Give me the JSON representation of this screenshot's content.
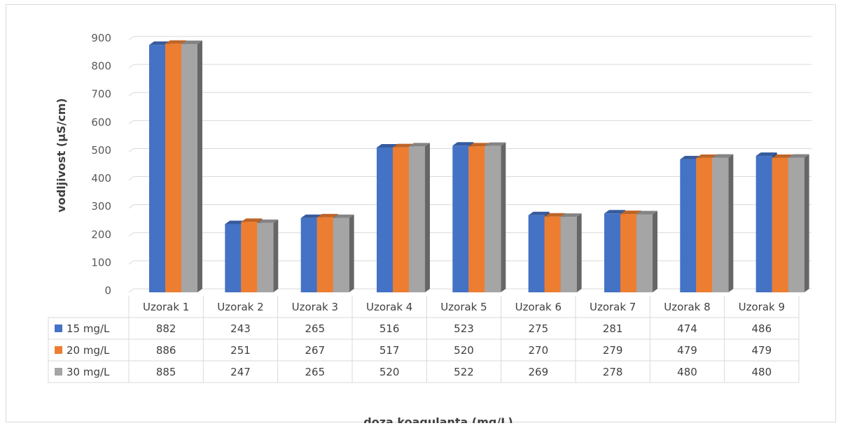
{
  "chart_data": {
    "type": "bar",
    "title": "",
    "xlabel": "doza koagulanta (mg/L)",
    "ylabel": "vodljivost (µS/cm)",
    "ylim": [
      0,
      900
    ],
    "yticks": [
      0,
      100,
      200,
      300,
      400,
      500,
      600,
      700,
      800,
      900
    ],
    "grid": true,
    "style": "3d-clustered-column with data table",
    "categories": [
      "Uzorak 1",
      "Uzorak 2",
      "Uzorak 3",
      "Uzorak 4",
      "Uzorak 5",
      "Uzorak 6",
      "Uzorak 7",
      "Uzorak 8",
      "Uzorak 9"
    ],
    "series": [
      {
        "name": "15 mg/L",
        "color": "#4472c4",
        "values": [
          882,
          243,
          265,
          516,
          523,
          275,
          281,
          474,
          486
        ]
      },
      {
        "name": "20 mg/L",
        "color": "#ed7d31",
        "values": [
          886,
          251,
          267,
          517,
          520,
          270,
          279,
          479,
          479
        ]
      },
      {
        "name": "30 mg/L",
        "color": "#a5a5a5",
        "values": [
          885,
          247,
          265,
          520,
          522,
          269,
          278,
          480,
          480
        ]
      }
    ]
  }
}
